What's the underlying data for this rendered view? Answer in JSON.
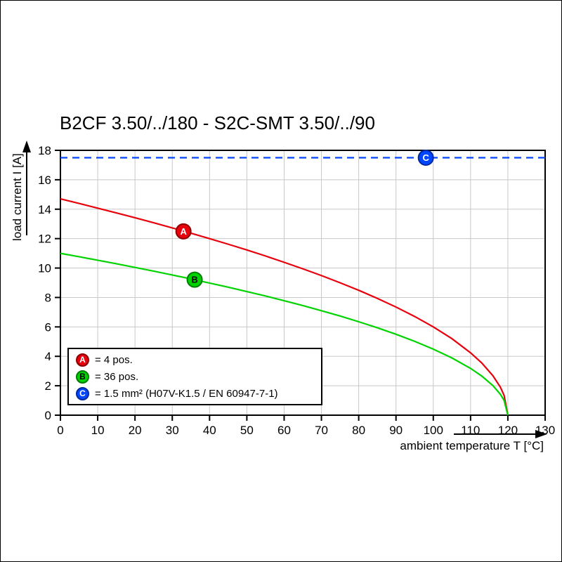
{
  "page": {
    "title": "B2CF 3.50/../180 - S2C-SMT 3.50/../90"
  },
  "chart_data": {
    "type": "line",
    "title": "B2CF 3.50/../180 - S2C-SMT 3.50/../90",
    "xlabel": "ambient temperature T [°C]",
    "ylabel": "load current I [A]",
    "xlim": [
      0,
      130
    ],
    "ylim": [
      0,
      18
    ],
    "xticks": [
      0,
      10,
      20,
      30,
      40,
      50,
      60,
      70,
      80,
      90,
      100,
      110,
      120,
      130
    ],
    "yticks": [
      0,
      2,
      4,
      6,
      8,
      10,
      12,
      14,
      16,
      18
    ],
    "grid": true,
    "grid_color": "#c8c8c8",
    "legend_position": "bottom-left",
    "series": [
      {
        "name": "A",
        "label": "= 4 pos.",
        "color": "#e8000d",
        "dark": "#8f0000",
        "letter_color": "#ffffff",
        "style": "solid",
        "marker_at": {
          "x": 33,
          "y": 12.49
        },
        "x": [
          0,
          5,
          10,
          15,
          20,
          25,
          30,
          35,
          40,
          45,
          50,
          55,
          60,
          65,
          70,
          75,
          80,
          85,
          90,
          95,
          100,
          105,
          110,
          113,
          116,
          118,
          119,
          120
        ],
        "y": [
          14.7,
          14.39,
          14.07,
          13.75,
          13.42,
          13.08,
          12.73,
          12.37,
          12.0,
          11.62,
          11.23,
          10.82,
          10.39,
          9.95,
          9.49,
          9.0,
          8.49,
          7.94,
          7.35,
          6.71,
          6.0,
          5.2,
          4.24,
          3.55,
          2.68,
          1.9,
          1.34,
          0
        ]
      },
      {
        "name": "B",
        "label": "= 36 pos.",
        "color": "#00d400",
        "dark": "#007a00",
        "letter_color": "#000000",
        "style": "solid",
        "marker_at": {
          "x": 36,
          "y": 9.21
        },
        "x": [
          0,
          5,
          10,
          15,
          20,
          25,
          30,
          35,
          40,
          45,
          50,
          55,
          60,
          65,
          70,
          75,
          80,
          85,
          90,
          95,
          100,
          105,
          110,
          113,
          116,
          118,
          119,
          120
        ],
        "y": [
          11.0,
          10.77,
          10.53,
          10.29,
          10.04,
          9.79,
          9.53,
          9.26,
          8.98,
          8.7,
          8.4,
          8.1,
          7.78,
          7.45,
          7.1,
          6.74,
          6.35,
          5.94,
          5.5,
          5.02,
          4.49,
          3.89,
          3.18,
          2.66,
          2.01,
          1.42,
          1.0,
          0
        ]
      },
      {
        "name": "C",
        "label": "= 1.5 mm² (H07V-K1.5 / EN 60947-7-1)",
        "color": "#0046ff",
        "dark": "#0028a0",
        "letter_color": "#ffffff",
        "style": "dashed",
        "marker_at": {
          "x": 98,
          "y": 17.5
        },
        "x": [
          0,
          130
        ],
        "y": [
          17.5,
          17.5
        ]
      }
    ]
  }
}
